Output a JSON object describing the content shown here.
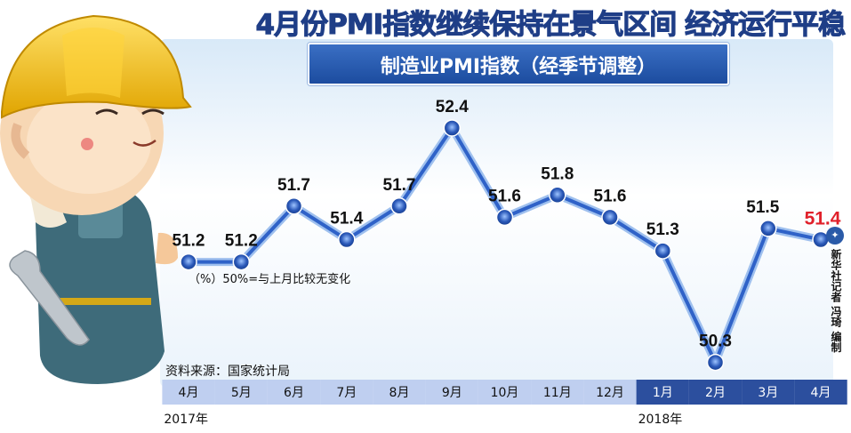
{
  "headline": "4月份PMI指数继续保持在景气区间 经济运行平稳",
  "subtitle": "制造业PMI指数（经季节调整）",
  "note": "（%）50%=与上月比较无变化",
  "source": "资料来源：国家统计局",
  "credit": "新华社记者 冯琦 编制",
  "colors": {
    "line": "#2f62c8",
    "marker": "#2a58b8",
    "highlight_label": "#e0202a",
    "month_bar_2017": "#bfcff0",
    "month_bar_2018": "#2c4f9e",
    "headline": "#1f3e87"
  },
  "chart_data": {
    "type": "line",
    "title": "制造业PMI指数（经季节调整）",
    "categories": [
      "4月",
      "5月",
      "6月",
      "7月",
      "8月",
      "9月",
      "10月",
      "11月",
      "12月",
      "1月",
      "2月",
      "3月",
      "4月"
    ],
    "years": [
      {
        "label": "2017年",
        "start_index": 0
      },
      {
        "label": "2018年",
        "start_index": 9
      }
    ],
    "series": [
      {
        "values": [
          51.2,
          51.2,
          51.7,
          51.4,
          51.7,
          52.4,
          51.6,
          51.8,
          51.6,
          51.3,
          50.3,
          51.5,
          51.4
        ]
      }
    ],
    "data_labels": [
      "51.2",
      "51.2",
      "51.7",
      "51.4",
      "51.7",
      "52.4",
      "51.6",
      "51.8",
      "51.6",
      "51.3",
      "50.3",
      "51.5",
      "51.4"
    ],
    "highlight_index": 12,
    "grid": false,
    "legend": "none"
  }
}
